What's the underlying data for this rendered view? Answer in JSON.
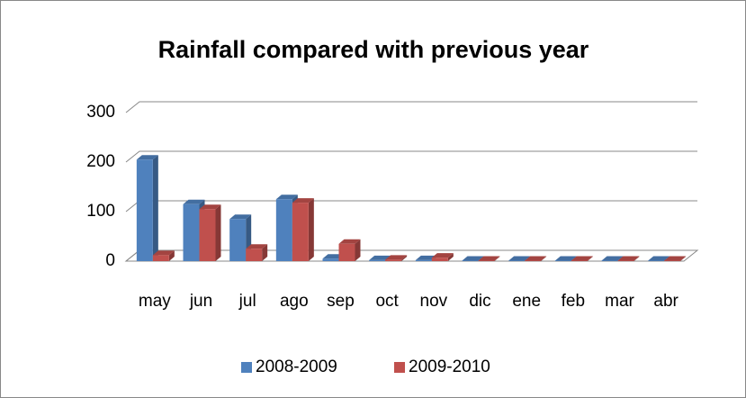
{
  "chart_data": {
    "type": "bar3d",
    "title": "Rainfall compared  with  previous year",
    "categories": [
      "may",
      "jun",
      "jul",
      "ago",
      "sep",
      "oct",
      "nov",
      "dic",
      "ene",
      "feb",
      "mar",
      "abr"
    ],
    "series": [
      {
        "name": "2008-2009",
        "color": "#4f81bd",
        "values": [
          205,
          115,
          85,
          125,
          5,
          2,
          2,
          1,
          1,
          1,
          1,
          1
        ]
      },
      {
        "name": "2009-2010",
        "color": "#c0504d",
        "values": [
          12,
          105,
          25,
          118,
          35,
          3,
          7,
          1,
          1,
          1,
          1,
          1
        ]
      }
    ],
    "ylim": [
      0,
      300
    ],
    "yticks": [
      0,
      100,
      200,
      300
    ],
    "grid": true,
    "legend": "bottom"
  }
}
